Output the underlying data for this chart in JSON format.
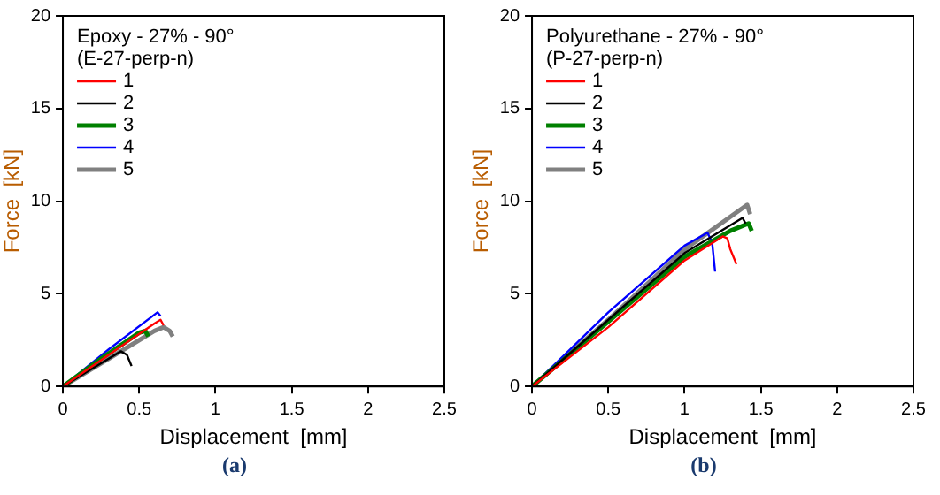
{
  "chart_data": [
    {
      "type": "line",
      "legend_title": "Epoxy - 27% - 90°\n(E-27-perp-n)",
      "xlabel": "Displacement  [mm]",
      "ylabel": "Force  [kN]",
      "annotations": [
        "(a)"
      ],
      "xlim": [
        0,
        2.5
      ],
      "xticks": [
        0,
        0.5,
        1,
        1.5,
        2,
        2.5
      ],
      "ylim": [
        0,
        20
      ],
      "yticks": [
        0,
        5,
        10,
        15,
        20
      ],
      "grid": false,
      "legend": "top left",
      "marker": "none",
      "line_style": "solid",
      "series": [
        {
          "name": "1",
          "color": "#ff0000",
          "x": [
            0,
            0.3,
            0.6,
            0.64,
            0.66
          ],
          "values": [
            0,
            1.7,
            3.4,
            3.6,
            3.3
          ]
        },
        {
          "name": "2",
          "color": "#000000",
          "x": [
            0,
            0.2,
            0.38,
            0.42,
            0.45
          ],
          "values": [
            0,
            1.0,
            1.9,
            1.7,
            1.1
          ]
        },
        {
          "name": "3",
          "color": "#008000",
          "x": [
            0,
            0.25,
            0.5,
            0.54,
            0.56
          ],
          "values": [
            0,
            1.5,
            2.9,
            3.0,
            2.7
          ]
        },
        {
          "name": "4",
          "color": "#0000ff",
          "x": [
            0,
            0.3,
            0.62,
            0.64
          ],
          "values": [
            0,
            2.0,
            4.0,
            3.8
          ]
        },
        {
          "name": "5",
          "color": "#808080",
          "x": [
            0,
            0.3,
            0.6,
            0.66,
            0.7,
            0.72
          ],
          "values": [
            0,
            1.5,
            3.0,
            3.2,
            3.0,
            2.7
          ]
        }
      ]
    },
    {
      "type": "line",
      "legend_title": "Polyurethane - 27% - 90°\n(P-27-perp-n)",
      "xlabel": "Displacement  [mm]",
      "ylabel": "Force  [kN]",
      "annotations": [
        "(b)"
      ],
      "xlim": [
        0,
        2.5
      ],
      "xticks": [
        0,
        0.5,
        1,
        1.5,
        2,
        2.5
      ],
      "ylim": [
        0,
        20
      ],
      "yticks": [
        0,
        5,
        10,
        15,
        20
      ],
      "grid": false,
      "legend": "top left",
      "marker": "none",
      "line_style": "solid",
      "series": [
        {
          "name": "1",
          "color": "#ff0000",
          "x": [
            0,
            0.5,
            1.0,
            1.25,
            1.28,
            1.3,
            1.34
          ],
          "values": [
            0,
            3.2,
            6.8,
            8.1,
            8.0,
            7.4,
            6.6
          ]
        },
        {
          "name": "2",
          "color": "#000000",
          "x": [
            0,
            0.5,
            1.0,
            1.38,
            1.4
          ],
          "values": [
            0,
            3.6,
            7.2,
            9.1,
            8.8
          ]
        },
        {
          "name": "3",
          "color": "#008000",
          "x": [
            0,
            0.5,
            1.0,
            1.3,
            1.42,
            1.44
          ],
          "values": [
            0,
            3.5,
            7.0,
            8.4,
            8.8,
            8.4
          ]
        },
        {
          "name": "4",
          "color": "#0000ff",
          "x": [
            0,
            0.5,
            1.0,
            1.15,
            1.18,
            1.2
          ],
          "values": [
            0,
            4.0,
            7.6,
            8.3,
            7.8,
            6.2
          ]
        },
        {
          "name": "5",
          "color": "#808080",
          "x": [
            0,
            0.5,
            1.0,
            1.41,
            1.43
          ],
          "values": [
            0,
            3.6,
            7.4,
            9.8,
            9.3
          ]
        }
      ]
    }
  ]
}
